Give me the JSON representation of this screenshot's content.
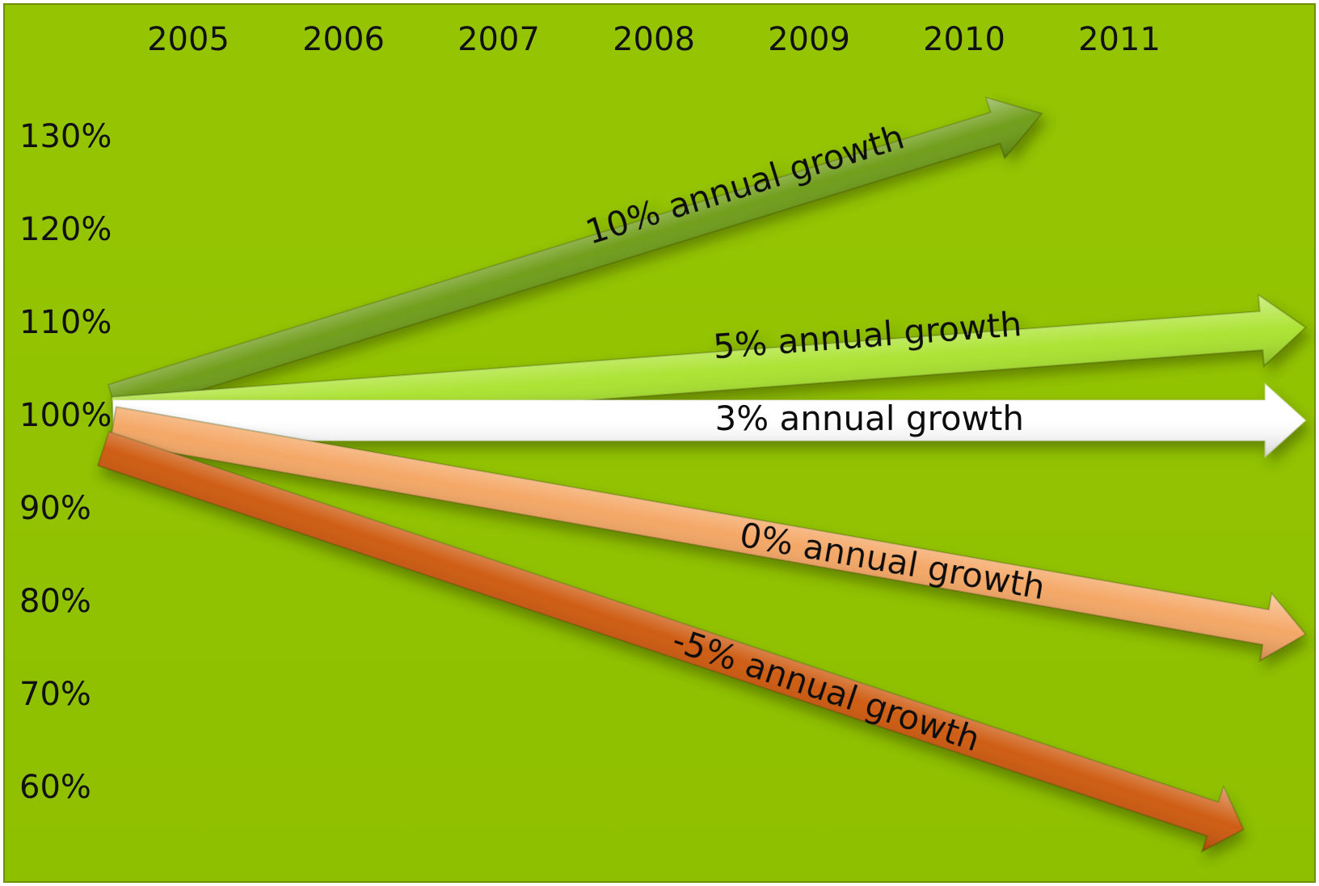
{
  "chart_data": {
    "type": "line",
    "title": "",
    "xlabel": "",
    "ylabel": "",
    "x_ticks": [
      "2005",
      "2006",
      "2007",
      "2008",
      "2009",
      "2010",
      "2011"
    ],
    "y_ticks": [
      "130%",
      "120%",
      "110%",
      "100%",
      "90%",
      "80%",
      "70%",
      "60%"
    ],
    "ylim": [
      60,
      130
    ],
    "grid": false,
    "legend": "none",
    "background": "#92c400",
    "series": [
      {
        "label": "10% annual growth",
        "rate": 10,
        "start": [
          "2005",
          100
        ],
        "end": [
          "2010.5",
          133
        ],
        "color": "#6a9a12"
      },
      {
        "label": "5% annual growth",
        "rate": 5,
        "start": [
          "2005",
          100
        ],
        "end": [
          "2012.2",
          110
        ],
        "color": "#a8e22a"
      },
      {
        "label": "3% annual growth",
        "rate": 3,
        "start": [
          "2005",
          100
        ],
        "end": [
          "2012.2",
          100
        ],
        "color": "#ffffff"
      },
      {
        "label": "0% annual growth",
        "rate": 0,
        "start": [
          "2005",
          100
        ],
        "end": [
          "2012.2",
          77
        ],
        "color": "#f4a460"
      },
      {
        "label": "-5% annual growth",
        "rate": -5,
        "start": [
          "2005",
          100
        ],
        "end": [
          "2011.8",
          56
        ],
        "color": "#cc5508"
      }
    ]
  }
}
